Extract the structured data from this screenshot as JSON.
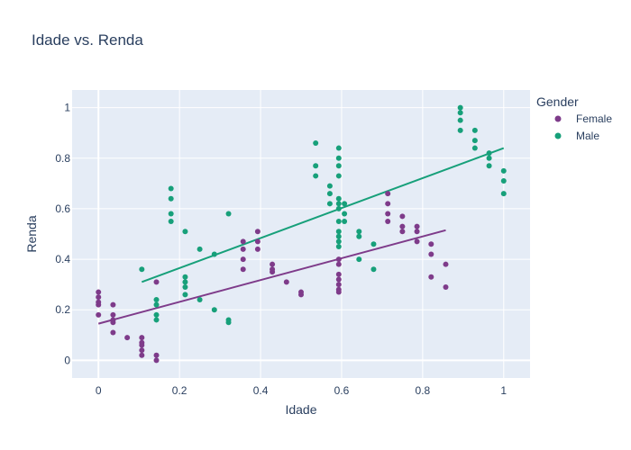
{
  "chart_data": {
    "type": "scatter",
    "title": "Idade vs. Renda",
    "xlabel": "Idade",
    "ylabel": "Renda",
    "xlim": [
      -0.065,
      1.065
    ],
    "ylim": [
      -0.07,
      1.07
    ],
    "xticks": [
      0,
      0.2,
      0.4,
      0.6,
      0.8,
      1
    ],
    "yticks": [
      0,
      0.2,
      0.4,
      0.6,
      0.8,
      1
    ],
    "xtick_labels": [
      "0",
      "0.2",
      "0.4",
      "0.6",
      "0.8",
      "1"
    ],
    "ytick_labels": [
      "0",
      "0.2",
      "0.4",
      "0.6",
      "0.8",
      "1"
    ],
    "grid": true,
    "plot_background": "#e5ecf6",
    "legend": {
      "title": "Gender",
      "position": "right"
    },
    "series": [
      {
        "name": "Female",
        "color": "#7e3b8a",
        "points": [
          [
            0,
            0.27
          ],
          [
            0,
            0.25
          ],
          [
            0,
            0.23
          ],
          [
            0,
            0.22
          ],
          [
            0,
            0.18
          ],
          [
            0.036,
            0.22
          ],
          [
            0.036,
            0.18
          ],
          [
            0.036,
            0.16
          ],
          [
            0.036,
            0.15
          ],
          [
            0.036,
            0.11
          ],
          [
            0.071,
            0.09
          ],
          [
            0.107,
            0.09
          ],
          [
            0.107,
            0.07
          ],
          [
            0.107,
            0.06
          ],
          [
            0.107,
            0.04
          ],
          [
            0.107,
            0.02
          ],
          [
            0.143,
            0.31
          ],
          [
            0.143,
            0.02
          ],
          [
            0.143,
            0.0
          ],
          [
            0.357,
            0.47
          ],
          [
            0.357,
            0.44
          ],
          [
            0.357,
            0.4
          ],
          [
            0.357,
            0.36
          ],
          [
            0.393,
            0.51
          ],
          [
            0.393,
            0.47
          ],
          [
            0.393,
            0.44
          ],
          [
            0.429,
            0.38
          ],
          [
            0.429,
            0.36
          ],
          [
            0.429,
            0.35
          ],
          [
            0.464,
            0.31
          ],
          [
            0.5,
            0.27
          ],
          [
            0.5,
            0.26
          ],
          [
            0.593,
            0.4
          ],
          [
            0.593,
            0.38
          ],
          [
            0.593,
            0.34
          ],
          [
            0.593,
            0.32
          ],
          [
            0.593,
            0.3
          ],
          [
            0.593,
            0.28
          ],
          [
            0.593,
            0.27
          ],
          [
            0.714,
            0.66
          ],
          [
            0.714,
            0.62
          ],
          [
            0.714,
            0.58
          ],
          [
            0.714,
            0.55
          ],
          [
            0.75,
            0.57
          ],
          [
            0.75,
            0.53
          ],
          [
            0.75,
            0.51
          ],
          [
            0.786,
            0.53
          ],
          [
            0.786,
            0.51
          ],
          [
            0.786,
            0.47
          ],
          [
            0.821,
            0.46
          ],
          [
            0.821,
            0.42
          ],
          [
            0.821,
            0.33
          ],
          [
            0.857,
            0.38
          ],
          [
            0.857,
            0.29
          ]
        ],
        "trendline": [
          [
            0,
            0.145
          ],
          [
            0.857,
            0.515
          ]
        ]
      },
      {
        "name": "Male",
        "color": "#17a07a",
        "points": [
          [
            0.107,
            0.36
          ],
          [
            0.143,
            0.24
          ],
          [
            0.143,
            0.22
          ],
          [
            0.143,
            0.18
          ],
          [
            0.143,
            0.16
          ],
          [
            0.179,
            0.68
          ],
          [
            0.179,
            0.64
          ],
          [
            0.179,
            0.58
          ],
          [
            0.179,
            0.55
          ],
          [
            0.214,
            0.51
          ],
          [
            0.214,
            0.33
          ],
          [
            0.214,
            0.31
          ],
          [
            0.214,
            0.29
          ],
          [
            0.214,
            0.26
          ],
          [
            0.25,
            0.44
          ],
          [
            0.25,
            0.24
          ],
          [
            0.286,
            0.42
          ],
          [
            0.286,
            0.2
          ],
          [
            0.321,
            0.58
          ],
          [
            0.321,
            0.16
          ],
          [
            0.321,
            0.15
          ],
          [
            0.536,
            0.86
          ],
          [
            0.536,
            0.77
          ],
          [
            0.536,
            0.73
          ],
          [
            0.571,
            0.69
          ],
          [
            0.571,
            0.66
          ],
          [
            0.571,
            0.62
          ],
          [
            0.593,
            0.84
          ],
          [
            0.593,
            0.8
          ],
          [
            0.593,
            0.77
          ],
          [
            0.593,
            0.73
          ],
          [
            0.593,
            0.64
          ],
          [
            0.593,
            0.62
          ],
          [
            0.593,
            0.6
          ],
          [
            0.593,
            0.55
          ],
          [
            0.593,
            0.51
          ],
          [
            0.593,
            0.49
          ],
          [
            0.593,
            0.47
          ],
          [
            0.593,
            0.45
          ],
          [
            0.607,
            0.62
          ],
          [
            0.607,
            0.58
          ],
          [
            0.607,
            0.55
          ],
          [
            0.643,
            0.51
          ],
          [
            0.643,
            0.49
          ],
          [
            0.643,
            0.4
          ],
          [
            0.679,
            0.46
          ],
          [
            0.679,
            0.36
          ],
          [
            0.893,
            1.0
          ],
          [
            0.893,
            0.98
          ],
          [
            0.893,
            0.95
          ],
          [
            0.893,
            0.91
          ],
          [
            0.929,
            0.91
          ],
          [
            0.929,
            0.87
          ],
          [
            0.929,
            0.84
          ],
          [
            0.964,
            0.82
          ],
          [
            0.964,
            0.8
          ],
          [
            0.964,
            0.77
          ],
          [
            1.0,
            0.75
          ],
          [
            1.0,
            0.71
          ],
          [
            1.0,
            0.66
          ]
        ],
        "trendline": [
          [
            0.107,
            0.31
          ],
          [
            1.0,
            0.84
          ]
        ]
      }
    ]
  }
}
